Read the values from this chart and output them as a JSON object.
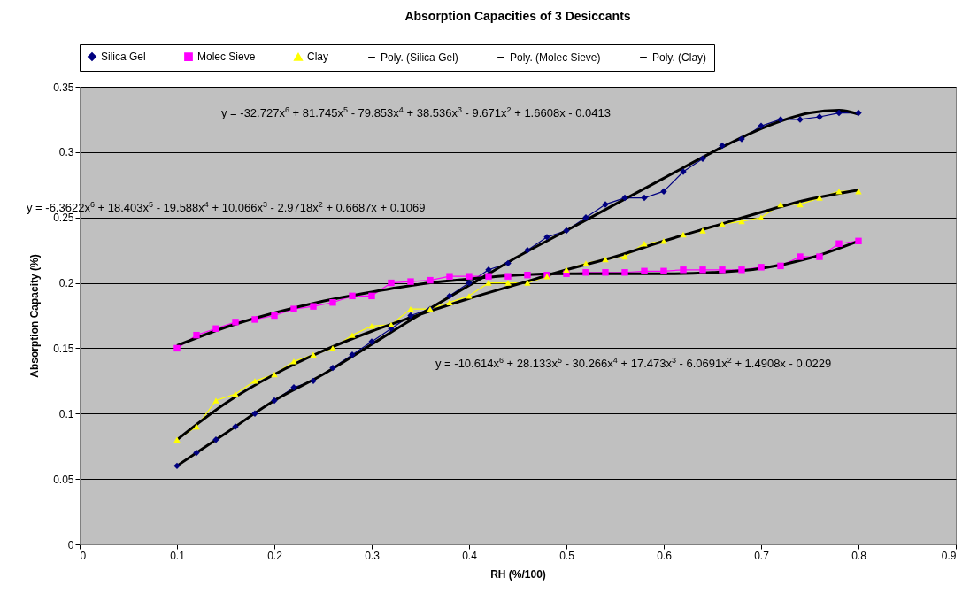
{
  "chart_data": {
    "type": "line",
    "title": "Absorption Capacities of 3 Desiccants",
    "xlabel": "RH (%/100)",
    "ylabel": "Absorption Capacity  (%)",
    "x": [
      0.1,
      0.12,
      0.14,
      0.16,
      0.18,
      0.2,
      0.22,
      0.24,
      0.26,
      0.28,
      0.3,
      0.32,
      0.34,
      0.36,
      0.38,
      0.4,
      0.42,
      0.44,
      0.46,
      0.48,
      0.5,
      0.52,
      0.54,
      0.56,
      0.58,
      0.6,
      0.62,
      0.64,
      0.66,
      0.68,
      0.7,
      0.72,
      0.74,
      0.76,
      0.78,
      0.8
    ],
    "series": [
      {
        "name": "Silica Gel",
        "color": "#000080",
        "marker": "diamond",
        "values": [
          0.06,
          0.07,
          0.08,
          0.09,
          0.1,
          0.11,
          0.12,
          0.125,
          0.135,
          0.145,
          0.155,
          0.165,
          0.175,
          0.18,
          0.19,
          0.2,
          0.21,
          0.215,
          0.225,
          0.235,
          0.24,
          0.25,
          0.26,
          0.265,
          0.265,
          0.27,
          0.285,
          0.295,
          0.305,
          0.31,
          0.32,
          0.325,
          0.325,
          0.327,
          0.33,
          0.33
        ]
      },
      {
        "name": "Molec Sieve",
        "color": "#ff00ff",
        "marker": "square",
        "values": [
          0.15,
          0.16,
          0.165,
          0.17,
          0.172,
          0.175,
          0.18,
          0.182,
          0.185,
          0.19,
          0.19,
          0.2,
          0.201,
          0.202,
          0.205,
          0.205,
          0.205,
          0.205,
          0.206,
          0.206,
          0.207,
          0.208,
          0.208,
          0.208,
          0.209,
          0.209,
          0.21,
          0.21,
          0.21,
          0.21,
          0.212,
          0.213,
          0.22,
          0.22,
          0.23,
          0.232
        ]
      },
      {
        "name": "Clay",
        "color": "#ffff00",
        "marker": "triangle",
        "values": [
          0.08,
          0.09,
          0.11,
          0.115,
          0.125,
          0.13,
          0.14,
          0.145,
          0.15,
          0.16,
          0.167,
          0.168,
          0.18,
          0.18,
          0.185,
          0.19,
          0.2,
          0.2,
          0.2,
          0.205,
          0.21,
          0.215,
          0.218,
          0.22,
          0.23,
          0.232,
          0.237,
          0.24,
          0.245,
          0.247,
          0.25,
          0.26,
          0.26,
          0.265,
          0.27,
          0.27
        ]
      },
      {
        "name": "Poly. (Silica Gel)",
        "color": "#000000",
        "marker": "none",
        "x": [
          0.1,
          0.15,
          0.2,
          0.25,
          0.3,
          0.35,
          0.4,
          0.45,
          0.5,
          0.55,
          0.6,
          0.65,
          0.7,
          0.75,
          0.78,
          0.8
        ],
        "values": [
          0.06,
          0.085,
          0.11,
          0.13,
          0.153,
          0.176,
          0.198,
          0.22,
          0.24,
          0.26,
          0.28,
          0.3,
          0.318,
          0.33,
          0.332,
          0.329
        ]
      },
      {
        "name": "Poly. (Molec Sieve)",
        "color": "#000000",
        "marker": "none",
        "x": [
          0.1,
          0.15,
          0.2,
          0.25,
          0.3,
          0.35,
          0.4,
          0.45,
          0.5,
          0.55,
          0.6,
          0.65,
          0.7,
          0.75,
          0.8
        ],
        "values": [
          0.152,
          0.166,
          0.177,
          0.186,
          0.193,
          0.199,
          0.203,
          0.206,
          0.207,
          0.207,
          0.207,
          0.208,
          0.211,
          0.219,
          0.232
        ]
      },
      {
        "name": "Poly. (Clay)",
        "color": "#000000",
        "marker": "none",
        "x": [
          0.1,
          0.15,
          0.2,
          0.25,
          0.3,
          0.35,
          0.4,
          0.45,
          0.5,
          0.55,
          0.6,
          0.65,
          0.7,
          0.75,
          0.8
        ],
        "values": [
          0.08,
          0.108,
          0.13,
          0.148,
          0.163,
          0.176,
          0.188,
          0.199,
          0.21,
          0.22,
          0.232,
          0.243,
          0.254,
          0.264,
          0.271
        ]
      }
    ],
    "xlim": [
      0,
      0.9
    ],
    "xticks": [
      0,
      0.1,
      0.2,
      0.3,
      0.4,
      0.5,
      0.6,
      0.7,
      0.8,
      0.9
    ],
    "ylim": [
      0,
      0.35
    ],
    "yticks": [
      0,
      0.05,
      0.1,
      0.15,
      0.2,
      0.25,
      0.3,
      0.35
    ],
    "grid": "y",
    "legend": "top",
    "annotations": [
      "y = -32.727x$^{6}$ + 81.745x$^{5}$ - 79.853x$^{4}$ + 38.536x$^{3}$ - 9.671x$^{2}$ + 1.6608x - 0.0413",
      "y = -6.3622x$^{6}$ + 18.403x$^{5}$ - 19.588x$^{4}$ + 10.066x$^{3}$ - 2.9718x$^{2}$ + 0.6687x + 0.1069",
      "y = -10.614x$^{6}$ + 28.133x$^{5}$ - 30.266x$^{4}$ + 17.473x$^{3}$ - 6.0691x$^{2}$ + 1.4908x - 0.0229"
    ]
  }
}
